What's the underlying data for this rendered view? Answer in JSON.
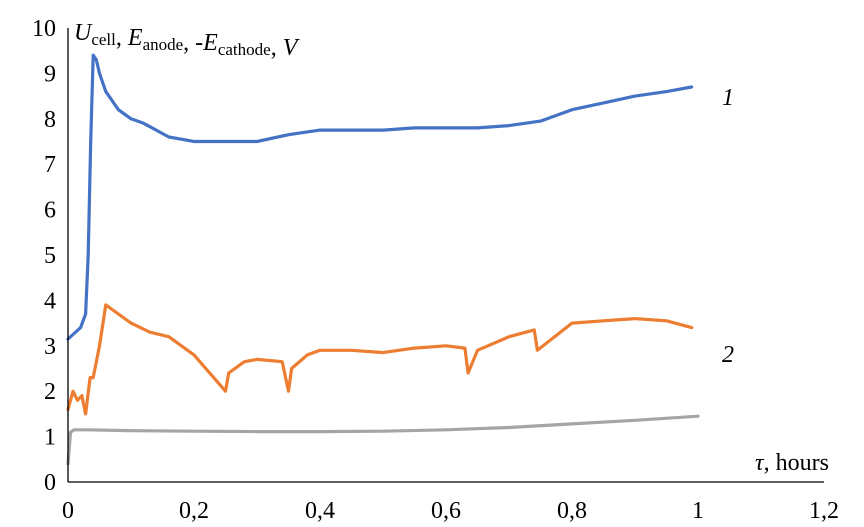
{
  "chart_data": {
    "type": "line",
    "title": "",
    "xlabel": {
      "symbol": "τ",
      "rest": ", hours"
    },
    "ylabel": {
      "parts": [
        {
          "main": "U",
          "sub": "cell"
        },
        {
          "main": ", E",
          "sub": "anode"
        },
        {
          "main": ", -E",
          "sub": "cathode"
        },
        {
          "main": ",  V",
          "sub": ""
        }
      ]
    },
    "xlim": [
      0,
      1.2
    ],
    "ylim": [
      0,
      10
    ],
    "x_ticks": [
      "0",
      "0,2",
      "0,4",
      "0,6",
      "0,8",
      "1",
      "1,2"
    ],
    "y_ticks": [
      "0",
      "1",
      "2",
      "3",
      "4",
      "5",
      "6",
      "7",
      "8",
      "9",
      "10"
    ],
    "grid": false,
    "series": [
      {
        "label": "1",
        "color": "#4472c4",
        "x": [
          0,
          0.02,
          0.028,
          0.032,
          0.036,
          0.04,
          0.045,
          0.05,
          0.06,
          0.08,
          0.1,
          0.12,
          0.14,
          0.16,
          0.18,
          0.2,
          0.25,
          0.3,
          0.35,
          0.4,
          0.45,
          0.5,
          0.55,
          0.6,
          0.65,
          0.7,
          0.75,
          0.8,
          0.85,
          0.9,
          0.95,
          0.99
        ],
        "y": [
          3.15,
          3.4,
          3.7,
          5.0,
          7.5,
          9.4,
          9.3,
          9.0,
          8.6,
          8.2,
          8.0,
          7.9,
          7.75,
          7.6,
          7.55,
          7.5,
          7.5,
          7.5,
          7.65,
          7.75,
          7.75,
          7.75,
          7.8,
          7.8,
          7.8,
          7.85,
          7.95,
          8.2,
          8.35,
          8.5,
          8.6,
          8.7
        ]
      },
      {
        "label": "2",
        "color": "#ed7d31",
        "x": [
          0,
          0.008,
          0.015,
          0.022,
          0.028,
          0.035,
          0.04,
          0.05,
          0.06,
          0.07,
          0.1,
          0.13,
          0.16,
          0.18,
          0.2,
          0.25,
          0.255,
          0.28,
          0.3,
          0.34,
          0.35,
          0.355,
          0.38,
          0.4,
          0.45,
          0.5,
          0.55,
          0.6,
          0.63,
          0.635,
          0.65,
          0.7,
          0.74,
          0.745,
          0.8,
          0.85,
          0.9,
          0.95,
          0.99
        ],
        "y": [
          1.6,
          2.0,
          1.8,
          1.9,
          1.5,
          2.3,
          2.3,
          3.0,
          3.9,
          3.8,
          3.5,
          3.3,
          3.2,
          3.0,
          2.8,
          2.0,
          2.4,
          2.65,
          2.7,
          2.65,
          2.0,
          2.5,
          2.8,
          2.9,
          2.9,
          2.85,
          2.95,
          3.0,
          2.95,
          2.4,
          2.9,
          3.2,
          3.35,
          2.9,
          3.5,
          3.55,
          3.6,
          3.55,
          3.4
        ]
      },
      {
        "label": "",
        "color": "#a5a5a5",
        "x": [
          0,
          0.004,
          0.01,
          0.03,
          0.1,
          0.2,
          0.3,
          0.4,
          0.5,
          0.6,
          0.7,
          0.8,
          0.9,
          1.0
        ],
        "y": [
          0.4,
          1.1,
          1.15,
          1.15,
          1.13,
          1.12,
          1.11,
          1.11,
          1.12,
          1.15,
          1.2,
          1.28,
          1.36,
          1.45
        ]
      }
    ]
  }
}
